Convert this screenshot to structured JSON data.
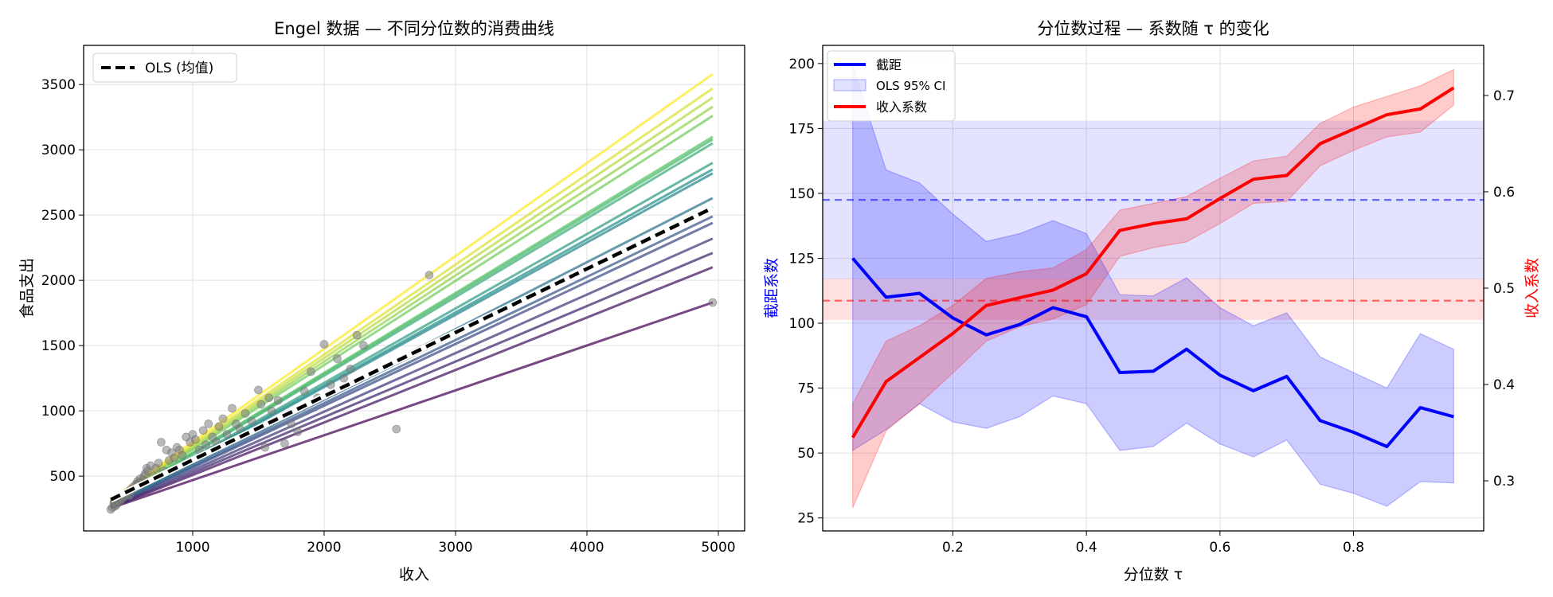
{
  "chart_data": [
    {
      "type": "line",
      "title": "Engel 数据 — 不同分位数的消费曲线",
      "xlabel": "收入",
      "ylabel": "食品支出",
      "xlim": [
        170,
        5200
      ],
      "ylim": [
        80,
        3800
      ],
      "xticks": [
        1000,
        2000,
        3000,
        4000,
        5000
      ],
      "yticks": [
        500,
        1000,
        1500,
        2000,
        2500,
        3000,
        3500
      ],
      "grid": true,
      "legend": {
        "position": "top-left",
        "entries": [
          "OLS (均值)"
        ]
      },
      "quantile_lines": {
        "x_start": 377,
        "x_end": 4957,
        "colormap": "viridis",
        "y_start": [
          255,
          258,
          262,
          266,
          270,
          273,
          276,
          280,
          283,
          286,
          289,
          292,
          296,
          299,
          302,
          305,
          309,
          313,
          318
        ],
        "y_end": [
          1830,
          2100,
          2210,
          2320,
          2440,
          2490,
          2560,
          2630,
          2820,
          2850,
          2900,
          3050,
          3080,
          3100,
          3260,
          3330,
          3400,
          3470,
          3580
        ]
      },
      "ols": {
        "name": "OLS (均值)",
        "x": [
          377,
          4957
        ],
        "y": [
          320,
          2555
        ]
      },
      "scatter": {
        "x": [
          377,
          390,
          400,
          410,
          420,
          430,
          440,
          450,
          460,
          470,
          480,
          490,
          500,
          510,
          520,
          530,
          540,
          550,
          560,
          570,
          580,
          590,
          600,
          610,
          620,
          630,
          640,
          650,
          660,
          680,
          700,
          720,
          740,
          760,
          780,
          800,
          820,
          840,
          860,
          880,
          900,
          920,
          950,
          980,
          1000,
          1020,
          1050,
          1080,
          1100,
          1120,
          1150,
          1180,
          1200,
          1230,
          1260,
          1300,
          1330,
          1360,
          1400,
          1450,
          1500,
          1520,
          1550,
          1580,
          1600,
          1650,
          1700,
          1750,
          1800,
          1850,
          1900,
          1950,
          2000,
          2050,
          2100,
          2150,
          2200,
          2250,
          2300,
          2550,
          2800,
          4957
        ],
        "y": [
          245,
          260,
          300,
          270,
          280,
          310,
          300,
          330,
          320,
          350,
          340,
          360,
          370,
          380,
          350,
          400,
          390,
          420,
          410,
          440,
          460,
          450,
          480,
          430,
          470,
          500,
          520,
          560,
          540,
          580,
          500,
          560,
          600,
          760,
          540,
          700,
          620,
          680,
          640,
          720,
          700,
          660,
          800,
          760,
          820,
          780,
          700,
          850,
          740,
          900,
          800,
          760,
          880,
          940,
          820,
          1020,
          900,
          860,
          980,
          920,
          1160,
          1050,
          720,
          1100,
          1000,
          1080,
          750,
          900,
          840,
          1150,
          1300,
          1100,
          1510,
          1200,
          1400,
          1250,
          1320,
          1580,
          1500,
          860,
          2040,
          1830
        ]
      }
    },
    {
      "type": "line",
      "title": "分位数过程 — 系数随 τ 的变化",
      "xlabel": "分位数 τ",
      "ylabel_left": "截距系数",
      "ylabel_right": "收入系数",
      "xlim": [
        0.005,
        0.995
      ],
      "ylim_left": [
        20,
        207
      ],
      "ylim_right": [
        0.248,
        0.752
      ],
      "xticks": [
        0.2,
        0.4,
        0.6,
        0.8
      ],
      "yticks_left": [
        25,
        50,
        75,
        100,
        125,
        150,
        175,
        200
      ],
      "yticks_right": [
        0.3,
        0.4,
        0.5,
        0.6,
        0.7
      ],
      "grid": true,
      "legend": {
        "position": "top-left",
        "entries": [
          "截距",
          "OLS 95% CI",
          "收入系数"
        ]
      },
      "colors": {
        "intercept": "#0000ff",
        "income": "#ff0000"
      },
      "tau": [
        0.05,
        0.1,
        0.15,
        0.2,
        0.25,
        0.3,
        0.35,
        0.4,
        0.45,
        0.5,
        0.55,
        0.6,
        0.65,
        0.7,
        0.75,
        0.8,
        0.85,
        0.9,
        0.95
      ],
      "intercept": {
        "name": "截距",
        "values": [
          125,
          110,
          111.5,
          102,
          95.5,
          99.5,
          106,
          102.5,
          81,
          81.5,
          90,
          80,
          74,
          79.5,
          62.5,
          58,
          52.5,
          67.5,
          64
        ],
        "ci_lower": [
          51,
          59,
          69,
          62,
          59.5,
          64,
          72,
          69,
          51,
          52.5,
          61.5,
          53.5,
          48.5,
          55,
          38,
          34.5,
          29.5,
          39,
          38.5
        ],
        "ci_upper": [
          199,
          159,
          154,
          142,
          131.5,
          134.5,
          139.5,
          134.5,
          111,
          110.5,
          117.5,
          106,
          99,
          104,
          87,
          81,
          75,
          96,
          90
        ],
        "ols": 147.5,
        "ols_ci": [
          117,
          178
        ]
      },
      "income": {
        "name": "收入系数",
        "values": [
          0.345,
          0.403,
          0.428,
          0.453,
          0.482,
          0.49,
          0.498,
          0.515,
          0.56,
          0.567,
          0.572,
          0.593,
          0.613,
          0.617,
          0.65,
          0.665,
          0.68,
          0.686,
          0.708
        ],
        "ci_lower": [
          0.272,
          0.352,
          0.38,
          0.412,
          0.445,
          0.46,
          0.468,
          0.483,
          0.533,
          0.542,
          0.548,
          0.567,
          0.588,
          0.59,
          0.627,
          0.643,
          0.657,
          0.662,
          0.69
        ],
        "ci_upper": [
          0.38,
          0.445,
          0.461,
          0.482,
          0.51,
          0.517,
          0.521,
          0.54,
          0.581,
          0.588,
          0.595,
          0.614,
          0.632,
          0.637,
          0.671,
          0.688,
          0.699,
          0.71,
          0.727
        ],
        "ols": 0.487,
        "ols_ci": [
          0.467,
          0.51
        ]
      }
    }
  ]
}
